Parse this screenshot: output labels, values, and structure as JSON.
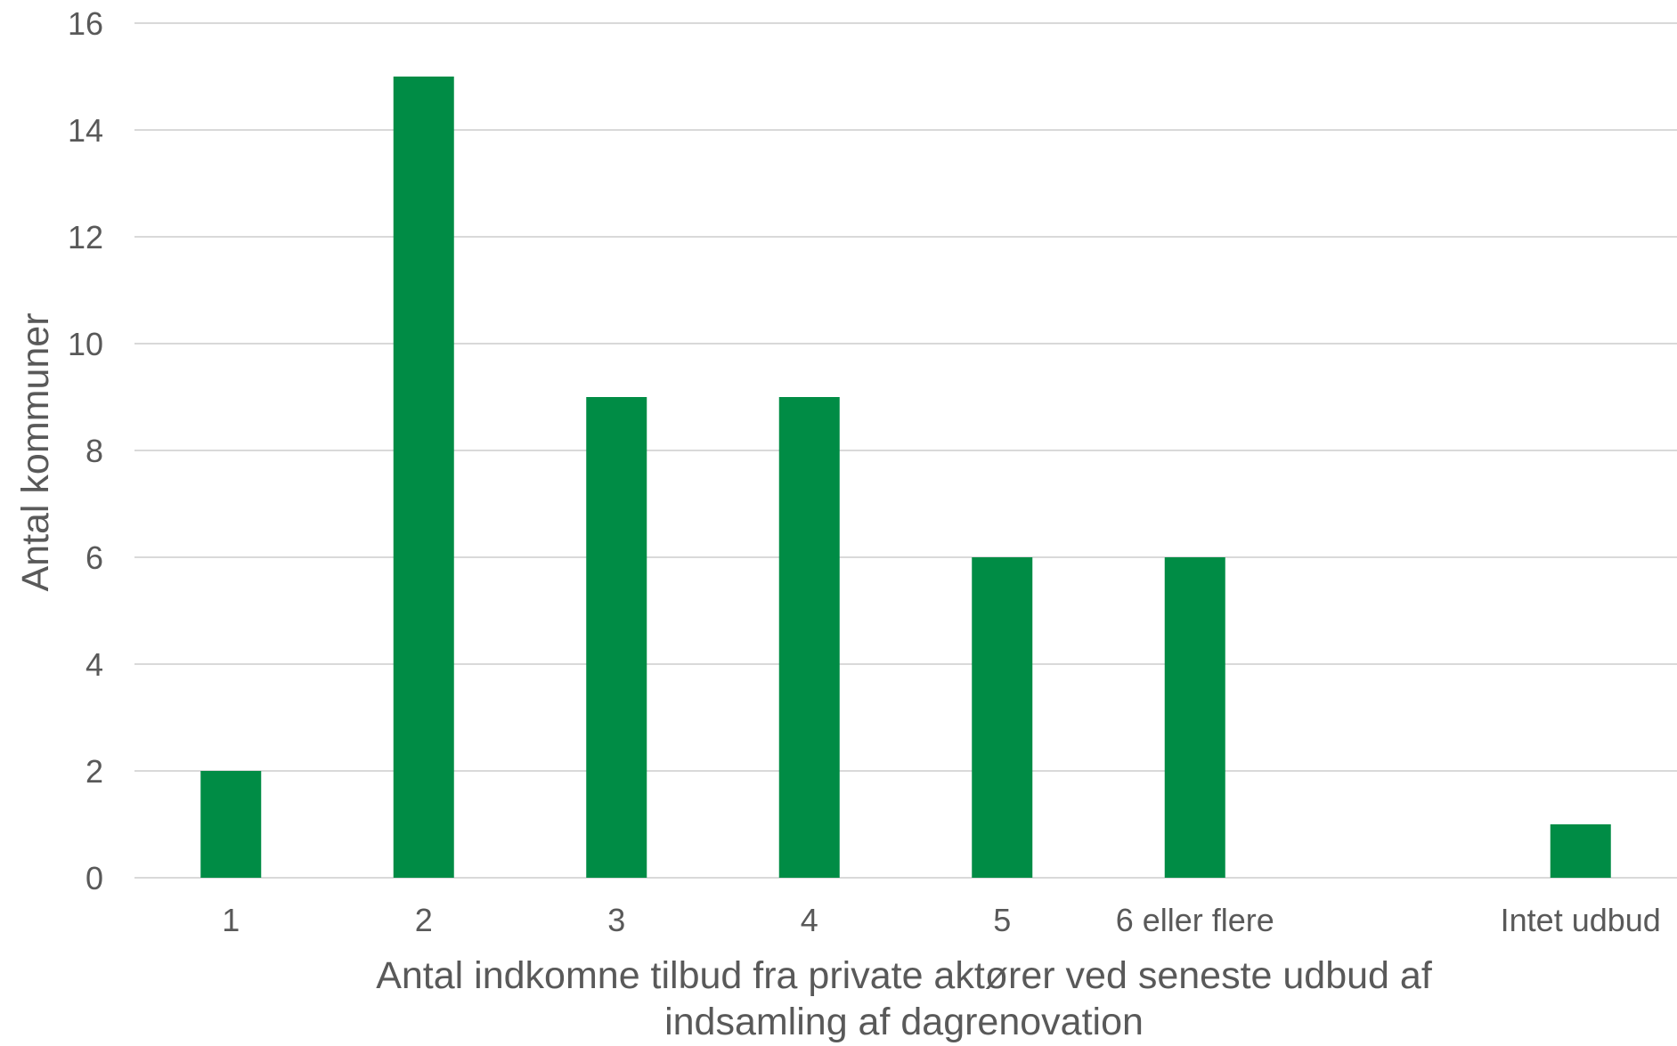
{
  "chart_data": {
    "type": "bar",
    "title": "",
    "categories": [
      "1",
      "2",
      "3",
      "4",
      "5",
      "6 eller flere",
      "",
      "Intet udbud"
    ],
    "series": [
      {
        "values": [
          2,
          15,
          9,
          9,
          6,
          6,
          0,
          1
        ]
      }
    ],
    "ylabel": "Antal kommuner",
    "xlabel_lines": [
      "Antal indkomne tilbud fra private aktører ved seneste udbud af",
      "indsamling af dagrenovation"
    ],
    "ylim": [
      0,
      16
    ],
    "yticks": [
      0,
      2,
      4,
      6,
      8,
      10,
      12,
      14,
      16
    ],
    "grid": true,
    "legend": "none",
    "colors": {
      "bar": "#008C45",
      "grid": "#D9D9D9",
      "text": "#595959"
    }
  }
}
